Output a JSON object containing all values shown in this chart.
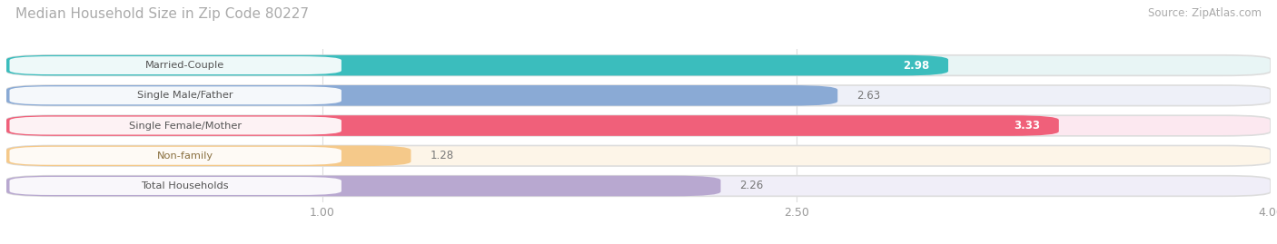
{
  "title": "Median Household Size in Zip Code 80227",
  "source": "Source: ZipAtlas.com",
  "categories": [
    "Married-Couple",
    "Single Male/Father",
    "Single Female/Mother",
    "Non-family",
    "Total Households"
  ],
  "values": [
    2.98,
    2.63,
    3.33,
    1.28,
    2.26
  ],
  "bar_colors": [
    "#3bbdbd",
    "#8aaad5",
    "#f0607a",
    "#f5c98a",
    "#b8a8d0"
  ],
  "bar_bg_colors": [
    "#e8f5f5",
    "#eef0f8",
    "#fce8f0",
    "#fdf5e8",
    "#f0eef8"
  ],
  "label_colors": [
    "#555555",
    "#555555",
    "#555555",
    "#8a7040",
    "#555555"
  ],
  "value_inside": [
    true,
    false,
    true,
    false,
    false
  ],
  "xlim": [
    0,
    4.0
  ],
  "xticks": [
    1.0,
    2.5,
    4.0
  ],
  "background_color": "#ffffff",
  "title_fontsize": 11,
  "source_fontsize": 8.5
}
